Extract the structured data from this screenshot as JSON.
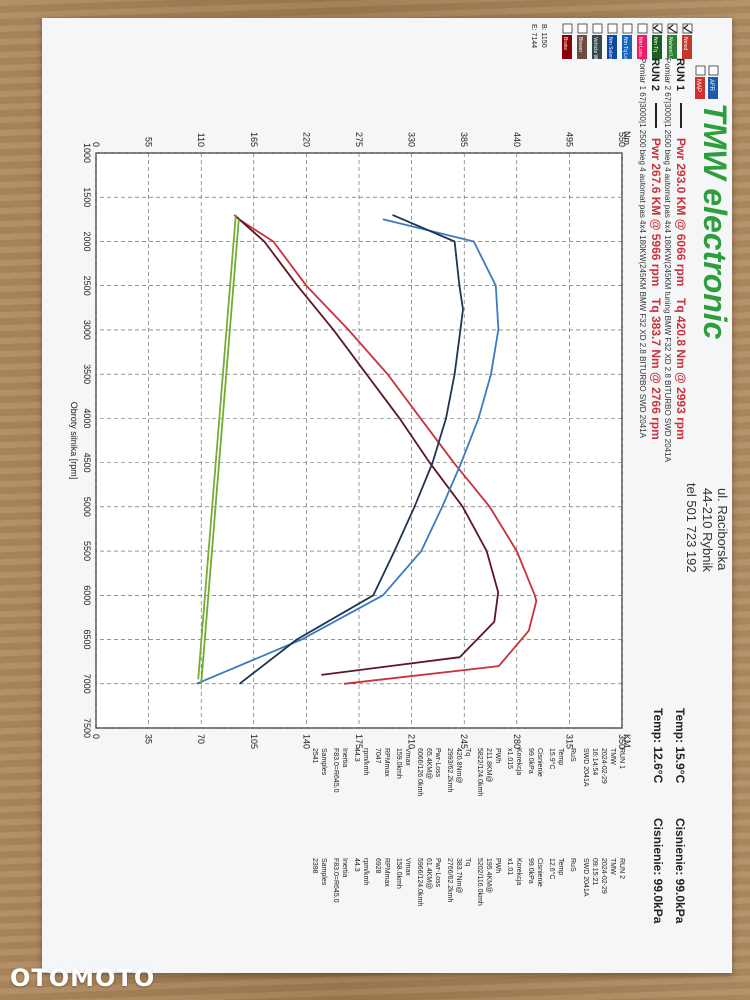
{
  "header": {
    "logo": "TMW electronic",
    "address_street": "ul. Raciborska",
    "address_city": "44-210 Rybnik",
    "phone": "tel 501 723 192"
  },
  "runs": [
    {
      "label": "RUN 1",
      "power_text": "Pwr 293.0 KM @ 6066 rpm",
      "torque_text": "Tq 420.8 Nm @ 2993 rpm",
      "desc": "Pomiar 2 67|3000|1 2500 bieg 4 automat pas 4x4 180KW(245KM tuning BMW F32 XD 2.8 BITURBO SWD 2041A"
    },
    {
      "label": "RUN 2",
      "power_text": "Pwr 267.6 KM @ 5966 rpm",
      "torque_text": "Tq 383.7 Nm @ 2766 rpm",
      "desc": "Pomiar 1 67|3000|1 2500 bieg 4 automat pas 4x4 180KW(245KM BMW F32 XD 2.8 BITURBO SWD 2041A"
    }
  ],
  "conditions": {
    "temp_run1": "Temp: 15.9°C",
    "pressure_run1": "Cisnienie: 99.0kPa",
    "temp_run2": "Temp: 12.6°C",
    "pressure_run2": "Cisnienie: 99.0kPa"
  },
  "legend_items": [
    {
      "label": "Nmod",
      "color": "#c0392b",
      "checked": true
    },
    {
      "label": "Nwheel Loss",
      "color": "#2e7d32",
      "checked": true
    },
    {
      "label": "Nm Tq",
      "color": "#1b5e20",
      "checked": true
    },
    {
      "label": "Nm Loss",
      "color": "#e91e63",
      "checked": false
    },
    {
      "label": "Nm Tq Loss",
      "color": "#1565c0",
      "checked": false
    },
    {
      "label": "Nm Solenoid",
      "color": "#0d47a1",
      "checked": false
    },
    {
      "label": "Vehicle Wh",
      "color": "#37474f",
      "checked": false
    },
    {
      "label": "Blower",
      "color": "#6d4c41",
      "checked": false
    },
    {
      "label": "Brake",
      "color": "#8b0000",
      "checked": false
    }
  ],
  "side_labels": {
    "b": "B: 1150",
    "e": "E: 7144"
  },
  "extra_legend": [
    {
      "label": "AFR",
      "color": "#1e5aa8"
    },
    {
      "label": "MAP",
      "color": "#d32f2f"
    }
  ],
  "stats": {
    "cols": [
      {
        "run": "RUN 1",
        "name": "TMW",
        "date": "2024-02-29",
        "time": "16:14:54",
        "swd": "SWD 2041A",
        "rows": [
          [
            "RuS",
            ""
          ],
          [
            "Temp",
            "15.9°C"
          ],
          [
            "Cisnienie",
            "99.0kPa"
          ],
          [
            "Korekcja",
            "x1.015"
          ],
          [
            "PWh",
            "211.8KM@",
            "5822/124.0kmh"
          ],
          [
            "Tq",
            "420.8Nm@",
            "2993/62.2kmh"
          ],
          [
            "Pwr-Loss",
            "65.4KM@",
            "6066/126.0kmh"
          ],
          [
            "Vmax",
            "159.0kmh"
          ],
          [
            "RPMmax",
            "7047"
          ],
          [
            "rpm/kmh",
            "44.3"
          ],
          [
            "Inertia",
            "F83.0=R645.0"
          ],
          [
            "Samples",
            "2541"
          ]
        ]
      },
      {
        "run": "RUN 2",
        "name": "TMW",
        "date": "2024-02-29",
        "time": "09:15:21",
        "swd": "SWD 2041A",
        "rows": [
          [
            "RuS",
            ""
          ],
          [
            "Temp",
            "12.6°C"
          ],
          [
            "Cisnienie",
            "99.0kPa"
          ],
          [
            "Korekcja",
            "x1.01"
          ],
          [
            "PWh",
            "195.4KM@",
            "5202/116.0kmh"
          ],
          [
            "Tq",
            "383.7Nm@",
            "2766/62.2kmh"
          ],
          [
            "Pwr-Loss",
            "61.4KM@",
            "5966/124.0kmh"
          ],
          [
            "Vmax",
            "158.0kmh"
          ],
          [
            "RPMmax",
            "6928"
          ],
          [
            "rpm/kmh",
            "44.3"
          ],
          [
            "Inertia",
            "F83.0=R645.0"
          ],
          [
            "Samples",
            "2398"
          ]
        ]
      }
    ]
  },
  "chart_data": {
    "type": "line",
    "xlabel": "Obroty silnika [rpm]",
    "x_ticks": [
      1000,
      1500,
      2000,
      2500,
      3000,
      3500,
      4000,
      4500,
      5000,
      5500,
      6000,
      6500,
      7000,
      7500
    ],
    "xlim": [
      1000,
      7500
    ],
    "ylabel_left": "Nm",
    "ylim_left": [
      0,
      550
    ],
    "y_ticks_left": [
      0,
      55,
      110,
      165,
      220,
      275,
      330,
      385,
      440,
      495,
      550
    ],
    "ylabel_right": "KM",
    "ylim_right": [
      0,
      350
    ],
    "y_ticks_right": [
      0,
      35,
      70,
      105,
      140,
      175,
      210,
      245,
      280,
      315,
      350
    ],
    "series": [
      {
        "name": "RUN 1 Pwr",
        "axis": "right",
        "color": "#c8323a",
        "x": [
          1750,
          2000,
          2500,
          3000,
          3500,
          4000,
          4500,
          5000,
          5500,
          6000,
          6066,
          6400,
          6800,
          7000
        ],
        "y": [
          95,
          118,
          140,
          168,
          194,
          216,
          238,
          262,
          280,
          292,
          293,
          288,
          268,
          165
        ]
      },
      {
        "name": "RUN 2 Pwr",
        "axis": "right",
        "color": "#5e1620",
        "x": [
          1700,
          2000,
          2500,
          3000,
          3500,
          4000,
          4500,
          5000,
          5500,
          5966,
          6300,
          6700,
          6900
        ],
        "y": [
          92,
          112,
          134,
          158,
          180,
          202,
          222,
          244,
          260,
          267.6,
          265,
          242,
          150
        ]
      },
      {
        "name": "RUN 1 Tq",
        "axis": "left",
        "color": "#3b7bbf",
        "x": [
          1750,
          2000,
          2500,
          2993,
          3500,
          4000,
          4500,
          5000,
          5500,
          6000,
          6500,
          7000
        ],
        "y": [
          300,
          395,
          418,
          420.8,
          413,
          400,
          382,
          362,
          340,
          300,
          215,
          105
        ]
      },
      {
        "name": "RUN 2 Tq",
        "axis": "left",
        "color": "#1f3550",
        "x": [
          1700,
          2000,
          2500,
          2766,
          3000,
          3500,
          4000,
          4500,
          5000,
          5500,
          6000,
          6500,
          7000
        ],
        "y": [
          310,
          375,
          380,
          383.7,
          381,
          375,
          366,
          352,
          333,
          312,
          290,
          210,
          150
        ]
      },
      {
        "name": "RUN 1 Loss",
        "axis": "right",
        "color": "#6fae2c",
        "x": [
          1750,
          7000
        ],
        "y": [
          95,
          70
        ]
      },
      {
        "name": "RUN 2 Loss",
        "axis": "right",
        "color": "#7fa838",
        "x": [
          1700,
          6950
        ],
        "y": [
          93,
          68
        ]
      }
    ]
  }
}
